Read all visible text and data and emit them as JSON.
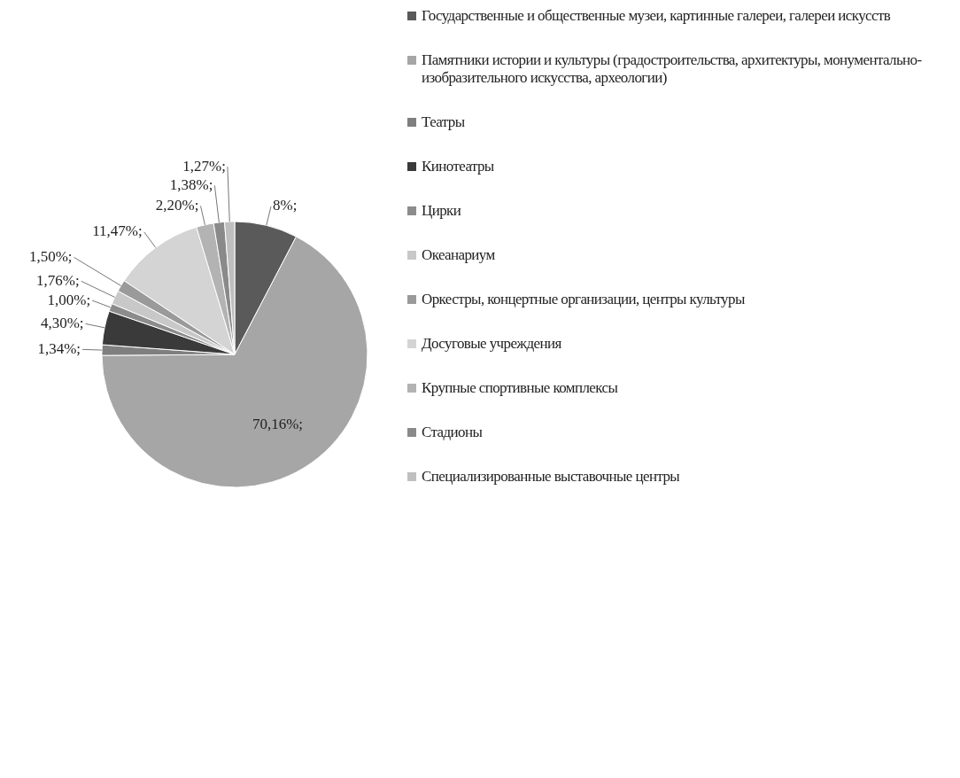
{
  "chart_data": {
    "type": "pie",
    "categories": [
      "Государственные и общественные музеи, картинные галереи, галереи искусств",
      "Памятники истории и культуры (градостроительства, архитектуры, монументально-изобразительного искусства, археологии)",
      "Театры",
      "Кинотеатры",
      "Цирки",
      "Океанариум",
      "Оркестры, концертные организации, центры культуры",
      "Досуговые учреждения",
      "Крупные спортивные комплексы",
      "Стадионы",
      "Специализированные выставочные центры"
    ],
    "values": [
      8,
      70.16,
      1.34,
      4.3,
      1.0,
      1.76,
      1.5,
      11.47,
      2.2,
      1.38,
      1.27
    ],
    "value_labels": [
      "8%;",
      "70,16%;",
      "1,34%;",
      "4,30%;",
      "1,00%;",
      "1,76%;",
      "1,50%;",
      "11,47%;",
      "2,20%;",
      "1,38%;",
      "1,27%;"
    ],
    "colors": [
      "#5a5a5a",
      "#a6a6a6",
      "#7f7f7f",
      "#3a3a3a",
      "#8c8c8c",
      "#c8c8c8",
      "#9a9a9a",
      "#d4d4d4",
      "#b3b3b3",
      "#8a8a8a",
      "#bfbfbf"
    ],
    "legend": "right"
  }
}
